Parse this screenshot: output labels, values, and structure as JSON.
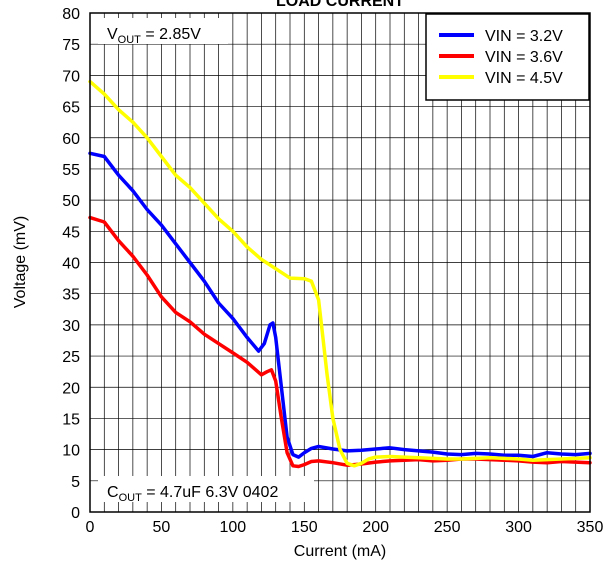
{
  "chart_data": {
    "type": "line",
    "title": "LOAD CURRENT",
    "xlabel": "Current (mA)",
    "ylabel": "Voltage (mV)",
    "xlim": [
      0,
      350
    ],
    "ylim": [
      0,
      80
    ],
    "x_ticks": [
      0,
      50,
      100,
      150,
      200,
      250,
      300,
      350
    ],
    "y_ticks": [
      0,
      5,
      10,
      15,
      20,
      25,
      30,
      35,
      40,
      45,
      50,
      55,
      60,
      65,
      70,
      75,
      80
    ],
    "grid": true,
    "legend_position": "top-right",
    "annotations": {
      "vout": {
        "prefix": "V",
        "sub": "OUT",
        "suffix": " = 2.85V"
      },
      "cout": {
        "prefix": "C",
        "sub": "OUT",
        "suffix": " = 4.7uF 6.3V 0402"
      }
    },
    "series": [
      {
        "name": "VIN = 3.2V",
        "color": "#0000ff",
        "points": [
          [
            0,
            57.5
          ],
          [
            10,
            57
          ],
          [
            20,
            54
          ],
          [
            30,
            51.5
          ],
          [
            40,
            48.5
          ],
          [
            50,
            46
          ],
          [
            60,
            43
          ],
          [
            70,
            40
          ],
          [
            80,
            37
          ],
          [
            90,
            33.5
          ],
          [
            100,
            31
          ],
          [
            110,
            28
          ],
          [
            118,
            25.8
          ],
          [
            122,
            27
          ],
          [
            126,
            30
          ],
          [
            128,
            30.3
          ],
          [
            130,
            28
          ],
          [
            134,
            20
          ],
          [
            138,
            12
          ],
          [
            142,
            9.2
          ],
          [
            146,
            8.8
          ],
          [
            150,
            9.5
          ],
          [
            155,
            10.2
          ],
          [
            160,
            10.5
          ],
          [
            170,
            10.1
          ],
          [
            180,
            9.8
          ],
          [
            190,
            9.9
          ],
          [
            200,
            10.1
          ],
          [
            210,
            10.3
          ],
          [
            220,
            10
          ],
          [
            230,
            9.8
          ],
          [
            240,
            9.6
          ],
          [
            250,
            9.3
          ],
          [
            260,
            9.2
          ],
          [
            270,
            9.4
          ],
          [
            280,
            9.3
          ],
          [
            290,
            9.1
          ],
          [
            300,
            9.1
          ],
          [
            310,
            8.9
          ],
          [
            320,
            9.5
          ],
          [
            330,
            9.3
          ],
          [
            340,
            9.2
          ],
          [
            350,
            9.4
          ]
        ]
      },
      {
        "name": "VIN = 3.6V",
        "color": "#ff0000",
        "points": [
          [
            0,
            47.2
          ],
          [
            10,
            46.5
          ],
          [
            20,
            43.5
          ],
          [
            30,
            41
          ],
          [
            40,
            38
          ],
          [
            50,
            34.5
          ],
          [
            60,
            32
          ],
          [
            70,
            30.5
          ],
          [
            80,
            28.5
          ],
          [
            90,
            27
          ],
          [
            100,
            25.5
          ],
          [
            110,
            24
          ],
          [
            120,
            22
          ],
          [
            124,
            22.5
          ],
          [
            127,
            22.8
          ],
          [
            130,
            21
          ],
          [
            134,
            15
          ],
          [
            138,
            9.5
          ],
          [
            142,
            7.4
          ],
          [
            146,
            7.3
          ],
          [
            150,
            7.6
          ],
          [
            155,
            8.1
          ],
          [
            160,
            8.2
          ],
          [
            170,
            7.9
          ],
          [
            180,
            7.5
          ],
          [
            190,
            7.7
          ],
          [
            200,
            8
          ],
          [
            210,
            8.2
          ],
          [
            220,
            8.3
          ],
          [
            230,
            8.4
          ],
          [
            240,
            8.2
          ],
          [
            250,
            8.3
          ],
          [
            260,
            8.5
          ],
          [
            270,
            8.5
          ],
          [
            280,
            8.4
          ],
          [
            290,
            8.3
          ],
          [
            300,
            8.2
          ],
          [
            310,
            8
          ],
          [
            320,
            7.9
          ],
          [
            330,
            8.1
          ],
          [
            340,
            8
          ],
          [
            350,
            7.9
          ]
        ]
      },
      {
        "name": "VIN = 4.5V",
        "color": "#ffff00",
        "points": [
          [
            0,
            69
          ],
          [
            10,
            67
          ],
          [
            20,
            64.5
          ],
          [
            30,
            62.5
          ],
          [
            40,
            60
          ],
          [
            50,
            57
          ],
          [
            60,
            54
          ],
          [
            70,
            52
          ],
          [
            80,
            49.5
          ],
          [
            90,
            47
          ],
          [
            100,
            45
          ],
          [
            110,
            42.5
          ],
          [
            120,
            40.5
          ],
          [
            130,
            39
          ],
          [
            140,
            37.5
          ],
          [
            150,
            37.4
          ],
          [
            155,
            37
          ],
          [
            160,
            34
          ],
          [
            163,
            28
          ],
          [
            166,
            22
          ],
          [
            170,
            15
          ],
          [
            175,
            10
          ],
          [
            180,
            7.8
          ],
          [
            185,
            7.4
          ],
          [
            190,
            7.8
          ],
          [
            195,
            8.5
          ],
          [
            200,
            8.8
          ],
          [
            210,
            8.9
          ],
          [
            220,
            8.8
          ],
          [
            230,
            8.7
          ],
          [
            240,
            8.6
          ],
          [
            250,
            8.5
          ],
          [
            260,
            8.5
          ],
          [
            270,
            8.6
          ],
          [
            280,
            8.7
          ],
          [
            290,
            8.6
          ],
          [
            300,
            8.5
          ],
          [
            310,
            8.3
          ],
          [
            320,
            8.4
          ],
          [
            330,
            8.5
          ],
          [
            340,
            8.6
          ],
          [
            350,
            8.7
          ]
        ]
      }
    ]
  }
}
